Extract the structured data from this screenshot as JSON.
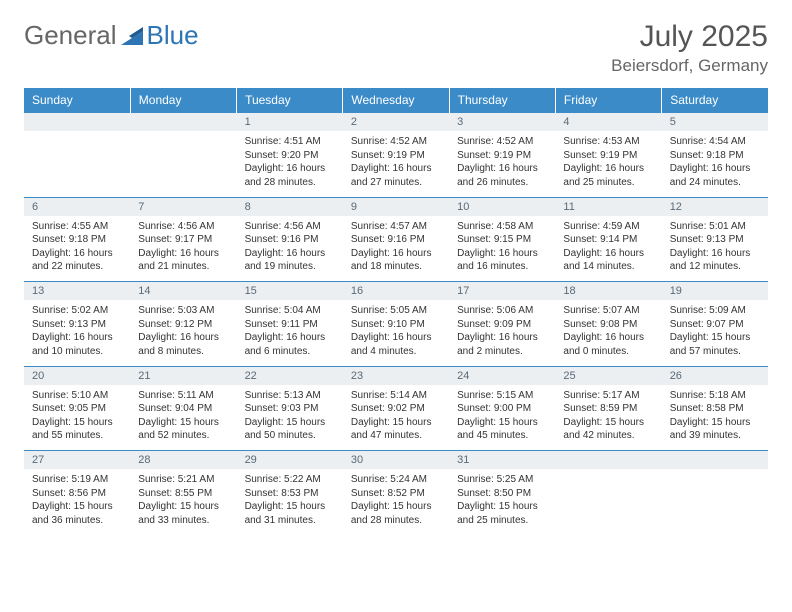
{
  "logo": {
    "text1": "General",
    "text2": "Blue"
  },
  "title": "July 2025",
  "location": "Beiersdorf, Germany",
  "colors": {
    "header_bg": "#3b8bc9",
    "header_text": "#ffffff",
    "daynum_bg": "#eceff1",
    "daynum_text": "#5a6a78",
    "row_border": "#3b8bc9",
    "body_text": "#333333",
    "logo_gray": "#666666",
    "logo_blue": "#2e75b6"
  },
  "weekdays": [
    "Sunday",
    "Monday",
    "Tuesday",
    "Wednesday",
    "Thursday",
    "Friday",
    "Saturday"
  ],
  "weeks": [
    [
      null,
      null,
      {
        "n": "1",
        "sr": "Sunrise: 4:51 AM",
        "ss": "Sunset: 9:20 PM",
        "dl": "Daylight: 16 hours and 28 minutes."
      },
      {
        "n": "2",
        "sr": "Sunrise: 4:52 AM",
        "ss": "Sunset: 9:19 PM",
        "dl": "Daylight: 16 hours and 27 minutes."
      },
      {
        "n": "3",
        "sr": "Sunrise: 4:52 AM",
        "ss": "Sunset: 9:19 PM",
        "dl": "Daylight: 16 hours and 26 minutes."
      },
      {
        "n": "4",
        "sr": "Sunrise: 4:53 AM",
        "ss": "Sunset: 9:19 PM",
        "dl": "Daylight: 16 hours and 25 minutes."
      },
      {
        "n": "5",
        "sr": "Sunrise: 4:54 AM",
        "ss": "Sunset: 9:18 PM",
        "dl": "Daylight: 16 hours and 24 minutes."
      }
    ],
    [
      {
        "n": "6",
        "sr": "Sunrise: 4:55 AM",
        "ss": "Sunset: 9:18 PM",
        "dl": "Daylight: 16 hours and 22 minutes."
      },
      {
        "n": "7",
        "sr": "Sunrise: 4:56 AM",
        "ss": "Sunset: 9:17 PM",
        "dl": "Daylight: 16 hours and 21 minutes."
      },
      {
        "n": "8",
        "sr": "Sunrise: 4:56 AM",
        "ss": "Sunset: 9:16 PM",
        "dl": "Daylight: 16 hours and 19 minutes."
      },
      {
        "n": "9",
        "sr": "Sunrise: 4:57 AM",
        "ss": "Sunset: 9:16 PM",
        "dl": "Daylight: 16 hours and 18 minutes."
      },
      {
        "n": "10",
        "sr": "Sunrise: 4:58 AM",
        "ss": "Sunset: 9:15 PM",
        "dl": "Daylight: 16 hours and 16 minutes."
      },
      {
        "n": "11",
        "sr": "Sunrise: 4:59 AM",
        "ss": "Sunset: 9:14 PM",
        "dl": "Daylight: 16 hours and 14 minutes."
      },
      {
        "n": "12",
        "sr": "Sunrise: 5:01 AM",
        "ss": "Sunset: 9:13 PM",
        "dl": "Daylight: 16 hours and 12 minutes."
      }
    ],
    [
      {
        "n": "13",
        "sr": "Sunrise: 5:02 AM",
        "ss": "Sunset: 9:13 PM",
        "dl": "Daylight: 16 hours and 10 minutes."
      },
      {
        "n": "14",
        "sr": "Sunrise: 5:03 AM",
        "ss": "Sunset: 9:12 PM",
        "dl": "Daylight: 16 hours and 8 minutes."
      },
      {
        "n": "15",
        "sr": "Sunrise: 5:04 AM",
        "ss": "Sunset: 9:11 PM",
        "dl": "Daylight: 16 hours and 6 minutes."
      },
      {
        "n": "16",
        "sr": "Sunrise: 5:05 AM",
        "ss": "Sunset: 9:10 PM",
        "dl": "Daylight: 16 hours and 4 minutes."
      },
      {
        "n": "17",
        "sr": "Sunrise: 5:06 AM",
        "ss": "Sunset: 9:09 PM",
        "dl": "Daylight: 16 hours and 2 minutes."
      },
      {
        "n": "18",
        "sr": "Sunrise: 5:07 AM",
        "ss": "Sunset: 9:08 PM",
        "dl": "Daylight: 16 hours and 0 minutes."
      },
      {
        "n": "19",
        "sr": "Sunrise: 5:09 AM",
        "ss": "Sunset: 9:07 PM",
        "dl": "Daylight: 15 hours and 57 minutes."
      }
    ],
    [
      {
        "n": "20",
        "sr": "Sunrise: 5:10 AM",
        "ss": "Sunset: 9:05 PM",
        "dl": "Daylight: 15 hours and 55 minutes."
      },
      {
        "n": "21",
        "sr": "Sunrise: 5:11 AM",
        "ss": "Sunset: 9:04 PM",
        "dl": "Daylight: 15 hours and 52 minutes."
      },
      {
        "n": "22",
        "sr": "Sunrise: 5:13 AM",
        "ss": "Sunset: 9:03 PM",
        "dl": "Daylight: 15 hours and 50 minutes."
      },
      {
        "n": "23",
        "sr": "Sunrise: 5:14 AM",
        "ss": "Sunset: 9:02 PM",
        "dl": "Daylight: 15 hours and 47 minutes."
      },
      {
        "n": "24",
        "sr": "Sunrise: 5:15 AM",
        "ss": "Sunset: 9:00 PM",
        "dl": "Daylight: 15 hours and 45 minutes."
      },
      {
        "n": "25",
        "sr": "Sunrise: 5:17 AM",
        "ss": "Sunset: 8:59 PM",
        "dl": "Daylight: 15 hours and 42 minutes."
      },
      {
        "n": "26",
        "sr": "Sunrise: 5:18 AM",
        "ss": "Sunset: 8:58 PM",
        "dl": "Daylight: 15 hours and 39 minutes."
      }
    ],
    [
      {
        "n": "27",
        "sr": "Sunrise: 5:19 AM",
        "ss": "Sunset: 8:56 PM",
        "dl": "Daylight: 15 hours and 36 minutes."
      },
      {
        "n": "28",
        "sr": "Sunrise: 5:21 AM",
        "ss": "Sunset: 8:55 PM",
        "dl": "Daylight: 15 hours and 33 minutes."
      },
      {
        "n": "29",
        "sr": "Sunrise: 5:22 AM",
        "ss": "Sunset: 8:53 PM",
        "dl": "Daylight: 15 hours and 31 minutes."
      },
      {
        "n": "30",
        "sr": "Sunrise: 5:24 AM",
        "ss": "Sunset: 8:52 PM",
        "dl": "Daylight: 15 hours and 28 minutes."
      },
      {
        "n": "31",
        "sr": "Sunrise: 5:25 AM",
        "ss": "Sunset: 8:50 PM",
        "dl": "Daylight: 15 hours and 25 minutes."
      },
      null,
      null
    ]
  ]
}
